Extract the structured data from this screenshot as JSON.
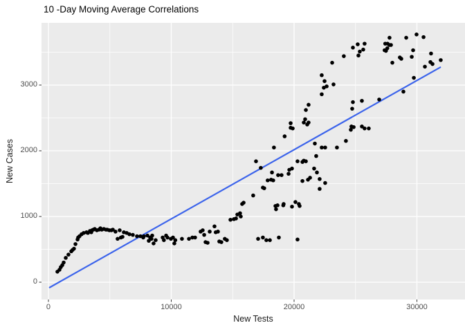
{
  "chart_data": {
    "type": "scatter",
    "title": "10 -Day Moving Average Correlations",
    "xlabel": "New Tests",
    "ylabel": "New Cases",
    "xlim": [
      -563,
      33915
    ],
    "ylim": [
      -263,
      3947
    ],
    "x_ticks": [
      0,
      10000,
      20000,
      30000
    ],
    "x_minor_ticks": [
      5000,
      15000,
      25000
    ],
    "y_ticks": [
      0,
      1000,
      2000,
      3000
    ],
    "y_minor_ticks": [
      500,
      1500,
      2500,
      3500
    ],
    "grid": "on",
    "legend": "none",
    "colors": {
      "page_bg": "#FFFFFF",
      "panel_bg": "#EBEBEB",
      "grid": "#FFFFFF",
      "point": "#000000",
      "trend_line": "#3C64EB",
      "axis_text": "#4D4D4D",
      "tick_mark": "#333333"
    },
    "trend_line": {
      "kind": "linear",
      "x1": 100,
      "y1": -80,
      "x2": 31900,
      "y2": 3270
    },
    "points": [
      [
        730,
        160
      ],
      [
        900,
        190
      ],
      [
        1010,
        230
      ],
      [
        1130,
        260
      ],
      [
        1240,
        300
      ],
      [
        1410,
        370
      ],
      [
        1630,
        420
      ],
      [
        1860,
        470
      ],
      [
        1960,
        490
      ],
      [
        2080,
        510
      ],
      [
        2200,
        580
      ],
      [
        2370,
        650
      ],
      [
        2420,
        680
      ],
      [
        2530,
        700
      ],
      [
        2700,
        730
      ],
      [
        2870,
        750
      ],
      [
        3100,
        760
      ],
      [
        3210,
        750
      ],
      [
        3380,
        780
      ],
      [
        3490,
        760
      ],
      [
        3550,
        790
      ],
      [
        3660,
        800
      ],
      [
        3770,
        810
      ],
      [
        3940,
        790
      ],
      [
        4110,
        800
      ],
      [
        4230,
        820
      ],
      [
        4340,
        800
      ],
      [
        4510,
        810
      ],
      [
        4680,
        800
      ],
      [
        4790,
        800
      ],
      [
        4960,
        790
      ],
      [
        5130,
        790
      ],
      [
        5240,
        800
      ],
      [
        5460,
        770
      ],
      [
        5630,
        660
      ],
      [
        5800,
        790
      ],
      [
        5900,
        680
      ],
      [
        6030,
        690
      ],
      [
        6140,
        760
      ],
      [
        6370,
        750
      ],
      [
        6590,
        730
      ],
      [
        6870,
        720
      ],
      [
        7210,
        700
      ],
      [
        7490,
        700
      ],
      [
        7720,
        680
      ],
      [
        7770,
        700
      ],
      [
        8060,
        710
      ],
      [
        8170,
        630
      ],
      [
        8280,
        680
      ],
      [
        8390,
        660
      ],
      [
        8450,
        710
      ],
      [
        8560,
        590
      ],
      [
        8730,
        640
      ],
      [
        9300,
        680
      ],
      [
        9400,
        640
      ],
      [
        9580,
        710
      ],
      [
        9690,
        680
      ],
      [
        9970,
        660
      ],
      [
        10140,
        680
      ],
      [
        10250,
        590
      ],
      [
        10330,
        640
      ],
      [
        10870,
        660
      ],
      [
        11440,
        660
      ],
      [
        11720,
        680
      ],
      [
        11940,
        680
      ],
      [
        12390,
        770
      ],
      [
        12560,
        790
      ],
      [
        12680,
        720
      ],
      [
        12790,
        610
      ],
      [
        12960,
        600
      ],
      [
        13130,
        770
      ],
      [
        13520,
        850
      ],
      [
        13620,
        760
      ],
      [
        13800,
        770
      ],
      [
        13910,
        620
      ],
      [
        14080,
        610
      ],
      [
        14360,
        660
      ],
      [
        14530,
        640
      ],
      [
        14820,
        950
      ],
      [
        15100,
        960
      ],
      [
        15270,
        970
      ],
      [
        15380,
        1030
      ],
      [
        15600,
        1050
      ],
      [
        15660,
        1000
      ],
      [
        15770,
        1190
      ],
      [
        15890,
        1210
      ],
      [
        16670,
        1320
      ],
      [
        16900,
        1840
      ],
      [
        17070,
        660
      ],
      [
        17290,
        1740
      ],
      [
        17460,
        1440
      ],
      [
        17460,
        680
      ],
      [
        17570,
        1430
      ],
      [
        17740,
        640
      ],
      [
        17850,
        1550
      ],
      [
        18030,
        640
      ],
      [
        18130,
        1560
      ],
      [
        18200,
        1670
      ],
      [
        18300,
        1550
      ],
      [
        18360,
        2050
      ],
      [
        18480,
        1160
      ],
      [
        18530,
        1110
      ],
      [
        18650,
        1170
      ],
      [
        18700,
        1630
      ],
      [
        18760,
        680
      ],
      [
        18980,
        1630
      ],
      [
        19120,
        1170
      ],
      [
        19150,
        1190
      ],
      [
        19230,
        2220
      ],
      [
        19550,
        1650
      ],
      [
        19610,
        1710
      ],
      [
        19720,
        2350
      ],
      [
        19720,
        2420
      ],
      [
        19830,
        1730
      ],
      [
        19830,
        1150
      ],
      [
        19890,
        2340
      ],
      [
        20110,
        1220
      ],
      [
        20280,
        1840
      ],
      [
        20280,
        650
      ],
      [
        20390,
        1190
      ],
      [
        20450,
        1160
      ],
      [
        20680,
        1830
      ],
      [
        20680,
        1540
      ],
      [
        20790,
        1850
      ],
      [
        20790,
        2430
      ],
      [
        20900,
        2480
      ],
      [
        20960,
        1840
      ],
      [
        20960,
        2620
      ],
      [
        21070,
        2400
      ],
      [
        21130,
        1560
      ],
      [
        21180,
        2700
      ],
      [
        21180,
        2430
      ],
      [
        21300,
        1590
      ],
      [
        21630,
        1730
      ],
      [
        21690,
        2110
      ],
      [
        21800,
        1920
      ],
      [
        21860,
        1670
      ],
      [
        22080,
        1570
      ],
      [
        22080,
        1420
      ],
      [
        22250,
        2050
      ],
      [
        22250,
        2860
      ],
      [
        22250,
        3150
      ],
      [
        22420,
        2960
      ],
      [
        22480,
        3060
      ],
      [
        22530,
        2050
      ],
      [
        22530,
        1510
      ],
      [
        22650,
        2980
      ],
      [
        23100,
        3340
      ],
      [
        23210,
        3010
      ],
      [
        23490,
        2050
      ],
      [
        24050,
        3440
      ],
      [
        24220,
        2150
      ],
      [
        24620,
        2320
      ],
      [
        24670,
        2370
      ],
      [
        24730,
        2640
      ],
      [
        24790,
        2740
      ],
      [
        24790,
        3570
      ],
      [
        24850,
        2360
      ],
      [
        25180,
        3620
      ],
      [
        25240,
        3450
      ],
      [
        25350,
        3510
      ],
      [
        25520,
        2760
      ],
      [
        25520,
        2370
      ],
      [
        25630,
        3540
      ],
      [
        25740,
        2340
      ],
      [
        25740,
        3630
      ],
      [
        26080,
        2340
      ],
      [
        26930,
        2780
      ],
      [
        27370,
        3530
      ],
      [
        27420,
        3630
      ],
      [
        27480,
        3520
      ],
      [
        27590,
        3560
      ],
      [
        27610,
        3630
      ],
      [
        27760,
        3610
      ],
      [
        27770,
        3720
      ],
      [
        27890,
        3610
      ],
      [
        28000,
        3340
      ],
      [
        28610,
        3420
      ],
      [
        28730,
        3400
      ],
      [
        28900,
        2900
      ],
      [
        29130,
        3720
      ],
      [
        29580,
        3430
      ],
      [
        29690,
        3530
      ],
      [
        29750,
        3110
      ],
      [
        29970,
        3770
      ],
      [
        30540,
        3730
      ],
      [
        30650,
        3280
      ],
      [
        31100,
        3350
      ],
      [
        31150,
        3480
      ],
      [
        31270,
        3320
      ],
      [
        31940,
        3380
      ]
    ]
  }
}
